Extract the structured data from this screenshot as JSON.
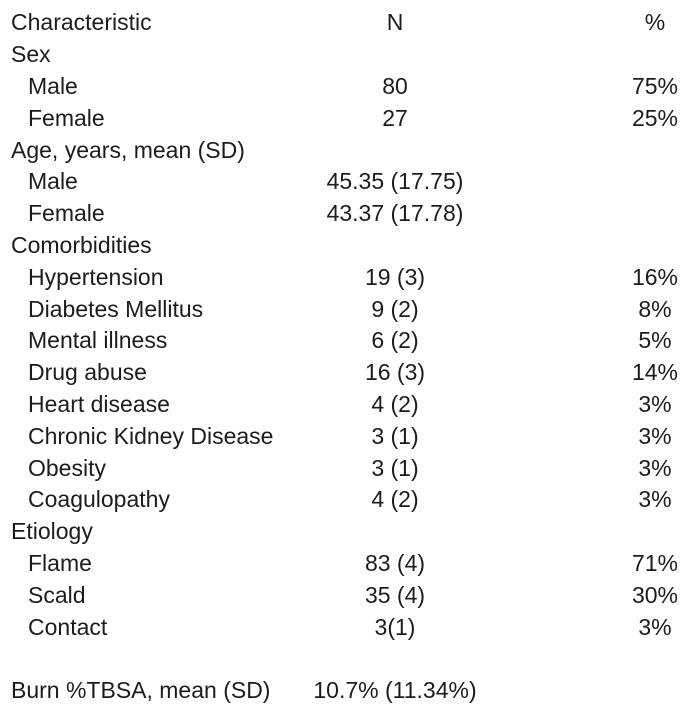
{
  "table": {
    "columns": [
      "Characteristic",
      "N",
      "%"
    ],
    "rows": [
      {
        "label": "Sex",
        "indent": 0,
        "n": "",
        "pct": ""
      },
      {
        "label": "Male",
        "indent": 1,
        "n": "80",
        "pct": "75%"
      },
      {
        "label": "Female",
        "indent": 1,
        "n": "27",
        "pct": "25%"
      },
      {
        "label": "Age, years, mean (SD)",
        "indent": 0,
        "n": "",
        "pct": ""
      },
      {
        "label": "Male",
        "indent": 1,
        "n": "45.35 (17.75)",
        "pct": ""
      },
      {
        "label": "Female",
        "indent": 1,
        "n": "43.37 (17.78)",
        "pct": ""
      },
      {
        "label": "Comorbidities",
        "indent": 0,
        "n": "",
        "pct": ""
      },
      {
        "label": "Hypertension",
        "indent": 1,
        "n": "19 (3)",
        "pct": "16%"
      },
      {
        "label": "Diabetes Mellitus",
        "indent": 1,
        "n": "9 (2)",
        "pct": "8%"
      },
      {
        "label": "Mental illness",
        "indent": 1,
        "n": "6 (2)",
        "pct": "5%"
      },
      {
        "label": "Drug abuse",
        "indent": 1,
        "n": "16 (3)",
        "pct": "14%"
      },
      {
        "label": "Heart disease",
        "indent": 1,
        "n": "4 (2)",
        "pct": "3%"
      },
      {
        "label": "Chronic Kidney Disease",
        "indent": 1,
        "n": "3 (1)",
        "pct": "3%"
      },
      {
        "label": "Obesity",
        "indent": 1,
        "n": "3 (1)",
        "pct": "3%"
      },
      {
        "label": "Coagulopathy",
        "indent": 1,
        "n": "4 (2)",
        "pct": "3%"
      },
      {
        "label": "Etiology",
        "indent": 0,
        "n": "",
        "pct": ""
      },
      {
        "label": "Flame",
        "indent": 1,
        "n": "83 (4)",
        "pct": "71%"
      },
      {
        "label": "Scald",
        "indent": 1,
        "n": "35 (4)",
        "pct": "30%"
      },
      {
        "label": "Contact",
        "indent": 1,
        "n": "3(1)",
        "pct": "3%"
      },
      {
        "label": "",
        "indent": 0,
        "n": "",
        "pct": ""
      },
      {
        "label": "Burn %TBSA, mean (SD)",
        "indent": 0,
        "n": "10.7% (11.34%)",
        "pct": ""
      }
    ]
  }
}
